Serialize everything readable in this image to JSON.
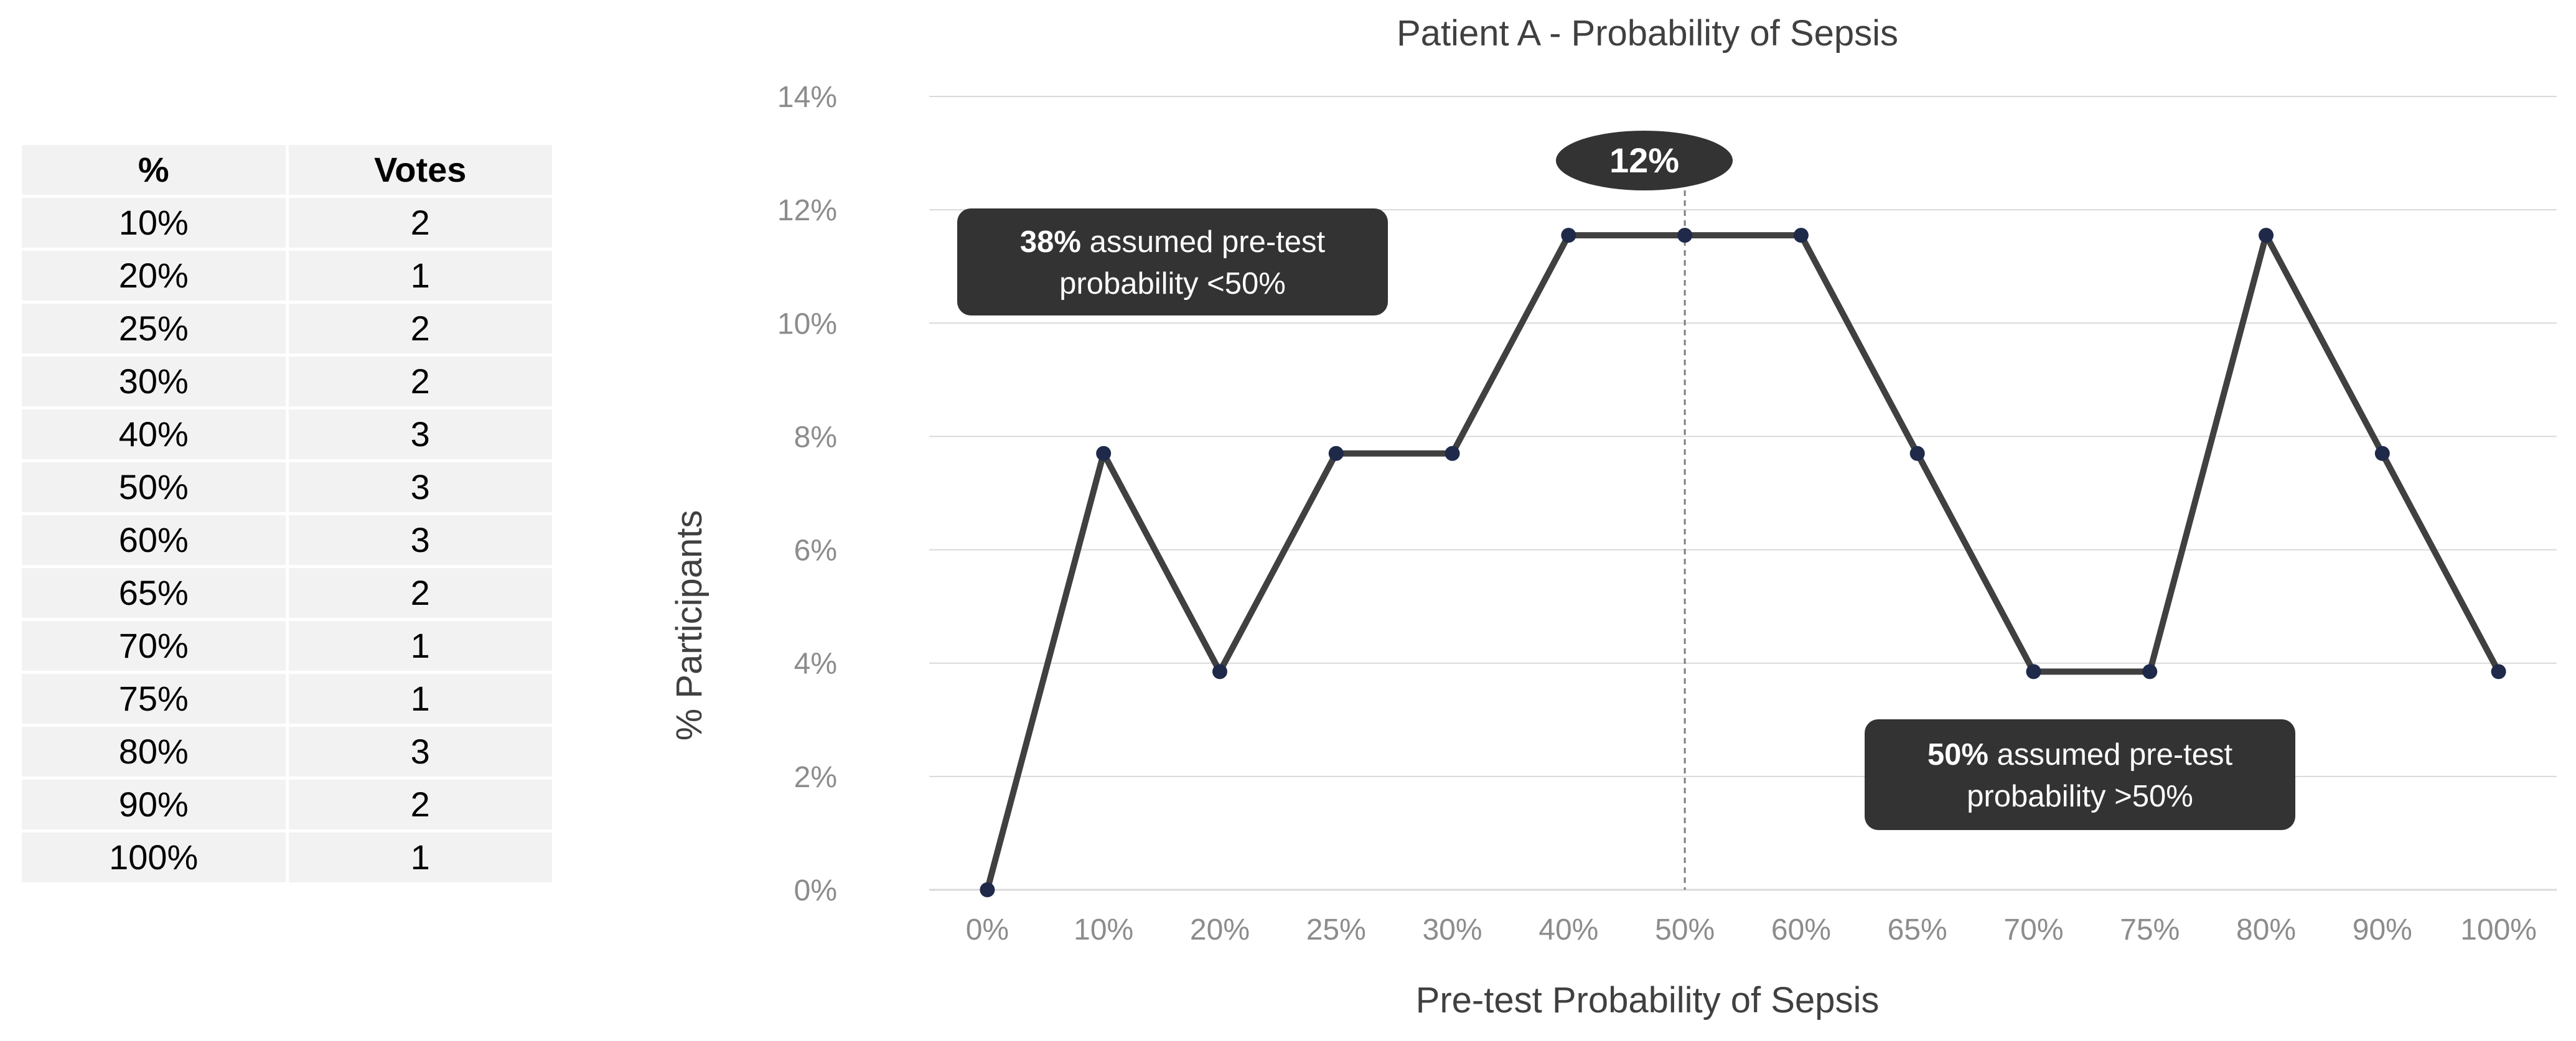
{
  "table": {
    "header_percent": "%",
    "header_votes": "Votes",
    "rows": [
      {
        "percent": "10%",
        "votes": "2"
      },
      {
        "percent": "20%",
        "votes": "1"
      },
      {
        "percent": "25%",
        "votes": "2"
      },
      {
        "percent": "30%",
        "votes": "2"
      },
      {
        "percent": "40%",
        "votes": "3"
      },
      {
        "percent": "50%",
        "votes": "3"
      },
      {
        "percent": "60%",
        "votes": "3"
      },
      {
        "percent": "65%",
        "votes": "2"
      },
      {
        "percent": "70%",
        "votes": "1"
      },
      {
        "percent": "75%",
        "votes": "1"
      },
      {
        "percent": "80%",
        "votes": "3"
      },
      {
        "percent": "90%",
        "votes": "2"
      },
      {
        "percent": "100%",
        "votes": "1"
      }
    ]
  },
  "chart_data": {
    "type": "line",
    "title": "Patient A - Probability of Sepsis",
    "xlabel": "Pre-test Probability of Sepsis",
    "ylabel": "% Participants",
    "categories": [
      "0%",
      "10%",
      "20%",
      "25%",
      "30%",
      "40%",
      "50%",
      "60%",
      "65%",
      "70%",
      "75%",
      "80%",
      "90%",
      "100%"
    ],
    "values": [
      0,
      7.7,
      3.85,
      7.7,
      7.7,
      11.55,
      11.55,
      11.55,
      7.7,
      3.85,
      3.85,
      11.55,
      7.7,
      3.85
    ],
    "ylim": [
      0,
      14
    ],
    "ytick_values": [
      0,
      2,
      4,
      6,
      8,
      10,
      12,
      14
    ],
    "ytick_labels": [
      "0%",
      "2%",
      "4%",
      "6%",
      "8%",
      "10%",
      "12%",
      "14%"
    ],
    "grid": "horizontal",
    "line_color": "#404040",
    "marker_color": "#1f2a4a",
    "reference_line": {
      "category": "50%",
      "style": "dashed"
    },
    "annotations": {
      "median_bubble": "12%",
      "left_callout": {
        "bold": "38%",
        "line1": "assumed pre-test",
        "line2": "probability <50%"
      },
      "right_callout": {
        "bold": "50%",
        "line1": "assumed pre-test",
        "line2": "probability >50%"
      }
    }
  },
  "colors": {
    "callout_bg": "#333333",
    "table_cell_bg": "#f2f2f2",
    "gridline": "#d9d9d9"
  }
}
